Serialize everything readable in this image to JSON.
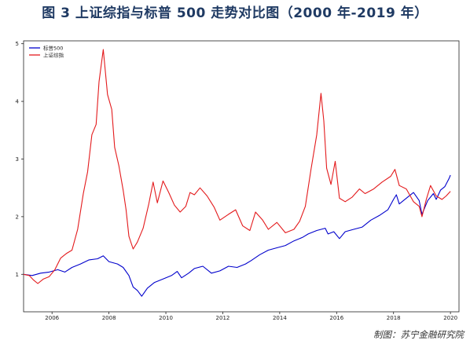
{
  "figure": {
    "title": "图 3 上证综指与标普 500 走势对比图（2000 年-2019 年）",
    "source": "制图：苏宁金融研究院"
  },
  "chart_data": {
    "type": "line",
    "xlim": [
      2005.0,
      2020.3
    ],
    "ylim": [
      0.35,
      5.05
    ],
    "grid": false,
    "legend_position": "top-left",
    "x_ticks": [
      2006,
      2008,
      2010,
      2012,
      2014,
      2016,
      2018,
      2020
    ],
    "x_tick_labels": [
      "2006",
      "2008",
      "2010",
      "2012",
      "2014",
      "2016",
      "2018",
      "2020"
    ],
    "y_ticks": [
      1,
      2,
      3,
      4,
      5
    ],
    "y_tick_labels": [
      "1",
      "2",
      "3",
      "4",
      "5"
    ],
    "series": [
      {
        "name": "标普500",
        "color": "#0000cc",
        "points": [
          [
            2005.0,
            1.0
          ],
          [
            2005.3,
            0.98
          ],
          [
            2005.6,
            1.02
          ],
          [
            2005.9,
            1.04
          ],
          [
            2006.2,
            1.08
          ],
          [
            2006.45,
            1.04
          ],
          [
            2006.7,
            1.12
          ],
          [
            2007.0,
            1.18
          ],
          [
            2007.3,
            1.25
          ],
          [
            2007.6,
            1.27
          ],
          [
            2007.8,
            1.32
          ],
          [
            2008.0,
            1.22
          ],
          [
            2008.3,
            1.18
          ],
          [
            2008.5,
            1.12
          ],
          [
            2008.7,
            0.98
          ],
          [
            2008.85,
            0.78
          ],
          [
            2009.0,
            0.72
          ],
          [
            2009.15,
            0.62
          ],
          [
            2009.35,
            0.76
          ],
          [
            2009.6,
            0.86
          ],
          [
            2009.9,
            0.92
          ],
          [
            2010.2,
            0.98
          ],
          [
            2010.4,
            1.05
          ],
          [
            2010.55,
            0.94
          ],
          [
            2010.8,
            1.02
          ],
          [
            2011.0,
            1.1
          ],
          [
            2011.3,
            1.14
          ],
          [
            2011.6,
            1.02
          ],
          [
            2011.9,
            1.06
          ],
          [
            2012.2,
            1.14
          ],
          [
            2012.5,
            1.12
          ],
          [
            2012.8,
            1.18
          ],
          [
            2013.0,
            1.24
          ],
          [
            2013.3,
            1.34
          ],
          [
            2013.6,
            1.42
          ],
          [
            2013.9,
            1.46
          ],
          [
            2014.2,
            1.5
          ],
          [
            2014.5,
            1.58
          ],
          [
            2014.8,
            1.64
          ],
          [
            2015.0,
            1.7
          ],
          [
            2015.3,
            1.76
          ],
          [
            2015.6,
            1.8
          ],
          [
            2015.7,
            1.7
          ],
          [
            2015.9,
            1.74
          ],
          [
            2016.1,
            1.62
          ],
          [
            2016.3,
            1.74
          ],
          [
            2016.6,
            1.78
          ],
          [
            2016.9,
            1.82
          ],
          [
            2017.2,
            1.94
          ],
          [
            2017.5,
            2.02
          ],
          [
            2017.8,
            2.12
          ],
          [
            2018.0,
            2.3
          ],
          [
            2018.1,
            2.38
          ],
          [
            2018.2,
            2.22
          ],
          [
            2018.5,
            2.34
          ],
          [
            2018.7,
            2.42
          ],
          [
            2018.9,
            2.28
          ],
          [
            2019.0,
            2.04
          ],
          [
            2019.2,
            2.28
          ],
          [
            2019.4,
            2.4
          ],
          [
            2019.5,
            2.3
          ],
          [
            2019.65,
            2.46
          ],
          [
            2019.8,
            2.52
          ],
          [
            2019.95,
            2.66
          ],
          [
            2020.0,
            2.72
          ]
        ]
      },
      {
        "name": "上证综指",
        "color": "#e31a1c",
        "points": [
          [
            2005.0,
            1.0
          ],
          [
            2005.2,
            0.98
          ],
          [
            2005.35,
            0.9
          ],
          [
            2005.5,
            0.84
          ],
          [
            2005.7,
            0.92
          ],
          [
            2005.9,
            0.96
          ],
          [
            2006.1,
            1.08
          ],
          [
            2006.3,
            1.28
          ],
          [
            2006.5,
            1.36
          ],
          [
            2006.7,
            1.42
          ],
          [
            2006.9,
            1.78
          ],
          [
            2007.1,
            2.4
          ],
          [
            2007.25,
            2.78
          ],
          [
            2007.4,
            3.42
          ],
          [
            2007.55,
            3.6
          ],
          [
            2007.65,
            4.34
          ],
          [
            2007.8,
            4.9
          ],
          [
            2007.95,
            4.12
          ],
          [
            2008.1,
            3.86
          ],
          [
            2008.2,
            3.2
          ],
          [
            2008.35,
            2.88
          ],
          [
            2008.5,
            2.46
          ],
          [
            2008.6,
            2.12
          ],
          [
            2008.7,
            1.66
          ],
          [
            2008.85,
            1.44
          ],
          [
            2009.0,
            1.56
          ],
          [
            2009.2,
            1.8
          ],
          [
            2009.4,
            2.22
          ],
          [
            2009.55,
            2.6
          ],
          [
            2009.7,
            2.24
          ],
          [
            2009.9,
            2.62
          ],
          [
            2010.1,
            2.42
          ],
          [
            2010.3,
            2.2
          ],
          [
            2010.5,
            2.08
          ],
          [
            2010.7,
            2.18
          ],
          [
            2010.85,
            2.42
          ],
          [
            2011.0,
            2.38
          ],
          [
            2011.2,
            2.5
          ],
          [
            2011.45,
            2.36
          ],
          [
            2011.7,
            2.16
          ],
          [
            2011.9,
            1.94
          ],
          [
            2012.2,
            2.04
          ],
          [
            2012.45,
            2.12
          ],
          [
            2012.7,
            1.84
          ],
          [
            2012.95,
            1.76
          ],
          [
            2013.15,
            2.08
          ],
          [
            2013.4,
            1.94
          ],
          [
            2013.6,
            1.78
          ],
          [
            2013.9,
            1.9
          ],
          [
            2014.2,
            1.72
          ],
          [
            2014.5,
            1.78
          ],
          [
            2014.7,
            1.92
          ],
          [
            2014.9,
            2.18
          ],
          [
            2015.1,
            2.82
          ],
          [
            2015.3,
            3.42
          ],
          [
            2015.45,
            4.14
          ],
          [
            2015.55,
            3.66
          ],
          [
            2015.65,
            2.84
          ],
          [
            2015.8,
            2.56
          ],
          [
            2015.95,
            2.96
          ],
          [
            2016.1,
            2.32
          ],
          [
            2016.3,
            2.26
          ],
          [
            2016.55,
            2.34
          ],
          [
            2016.8,
            2.48
          ],
          [
            2017.0,
            2.4
          ],
          [
            2017.3,
            2.48
          ],
          [
            2017.6,
            2.6
          ],
          [
            2017.9,
            2.7
          ],
          [
            2018.05,
            2.82
          ],
          [
            2018.2,
            2.54
          ],
          [
            2018.45,
            2.48
          ],
          [
            2018.7,
            2.26
          ],
          [
            2018.9,
            2.18
          ],
          [
            2019.0,
            2.0
          ],
          [
            2019.15,
            2.3
          ],
          [
            2019.3,
            2.54
          ],
          [
            2019.5,
            2.36
          ],
          [
            2019.7,
            2.3
          ],
          [
            2019.85,
            2.36
          ],
          [
            2020.0,
            2.44
          ]
        ]
      }
    ]
  }
}
